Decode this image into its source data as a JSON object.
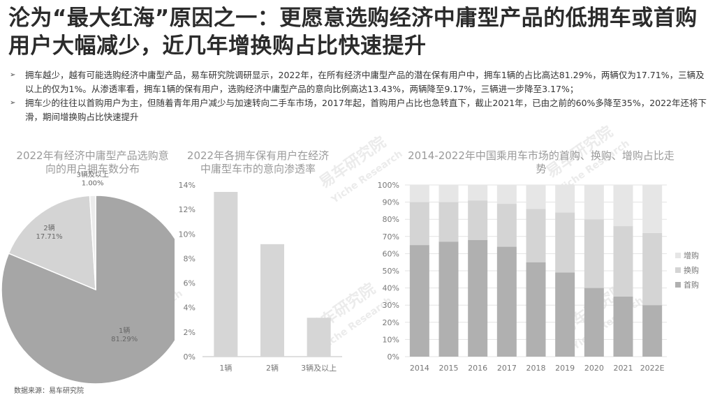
{
  "title": "沦为“最大红海”原因之一：更愿意选购经济中庸型产品的低拥车或首购用户大幅减少，近几年增换购占比快速提升",
  "bullets": [
    "拥车越少，越有可能选购经济中庸型产品，易车研究院调研显示，2022年，在所有经济中庸型产品的潜在保有用户中，拥车1辆的占比高达81.29%，两辆仅为17.71%，三辆及以上的仅为1%。从渗透率看，拥车1辆的保有用户，选购经济中庸型产品的意向比例高达13.43%，两辆降至9.17%，三辆进一步降至3.17%；",
    "拥车少的往往以首购用户为主，但随着青年用户减少与加速转向二手车市场，2017年起，首购用户占比也急转直下，截止2021年，已由之前的60%多降至35%，2022年还将下滑，期间增换购占比快速提升"
  ],
  "source": "数据来源：易车研究院",
  "watermark": {
    "cn": "易车研究院",
    "en": "Yiche Research"
  },
  "chart_data": [
    {
      "type": "pie",
      "title": "2022年有经济中庸型产品选购意向的用户拥车数分布",
      "labels": [
        "1辆",
        "2辆",
        "3辆及以上"
      ],
      "value_labels": [
        "81.29%",
        "17.71%",
        "1.00%"
      ],
      "values": [
        81.29,
        17.71,
        1.0
      ],
      "colors": [
        "#a6a6a6",
        "#d4d4d4",
        "#ececec"
      ]
    },
    {
      "type": "bar",
      "title": "2022年各拥车保有用户在经济中庸型车市的意向渗透率",
      "categories": [
        "1辆",
        "2辆",
        "3辆及以上"
      ],
      "values": [
        13.43,
        9.17,
        3.17
      ],
      "ylim": [
        0,
        14
      ],
      "yticks": [
        "0%",
        "2%",
        "4%",
        "6%",
        "8%",
        "10%",
        "12%",
        "14%"
      ],
      "color": "#d6d6d6",
      "grid": false
    },
    {
      "type": "bar",
      "stacked": true,
      "title": "2014-2022年中国乘用车市场的首购、换购、增购占比走势",
      "categories": [
        "2014",
        "2015",
        "2016",
        "2017",
        "2018",
        "2019",
        "2020",
        "2021",
        "2022E"
      ],
      "series": [
        {
          "name": "首购",
          "color": "#b0b0b0",
          "values": [
            65,
            67,
            68,
            64,
            55,
            49,
            40,
            35,
            30
          ]
        },
        {
          "name": "换购",
          "color": "#d4d4d4",
          "values": [
            25,
            23,
            23,
            25,
            31,
            35,
            40,
            41,
            42
          ]
        },
        {
          "name": "增购",
          "color": "#e6e6e6",
          "values": [
            10,
            10,
            9,
            11,
            14,
            16,
            20,
            24,
            28
          ]
        }
      ],
      "ylim": [
        0,
        100
      ],
      "yticks": [
        "0%",
        "10%",
        "20%",
        "30%",
        "40%",
        "50%",
        "60%",
        "70%",
        "80%",
        "90%",
        "100%"
      ],
      "legend_order": [
        "增购",
        "换购",
        "首购"
      ],
      "legend": "right",
      "grid": true
    }
  ]
}
